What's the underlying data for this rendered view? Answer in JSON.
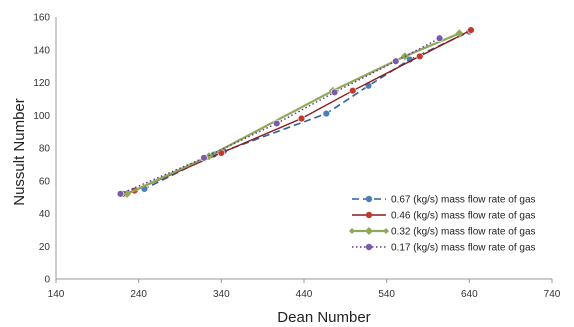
{
  "chart_data": {
    "type": "scatter",
    "xlabel": "Dean Number",
    "ylabel": "Nussult Number",
    "xlim": [
      140,
      740
    ],
    "ylim": [
      0,
      160
    ],
    "xticks": [
      140,
      240,
      340,
      440,
      540,
      640,
      740
    ],
    "yticks": [
      0,
      20,
      40,
      60,
      80,
      100,
      120,
      140,
      160
    ],
    "grid": false,
    "legend_position": "bottom-right",
    "series": [
      {
        "name": "0.67 (kg/s) mass flow rate of gas",
        "color": "#2E5F9E",
        "marker_color": "#4A7FB5",
        "line_style": "dashed",
        "x": [
          218,
          247,
          331,
          343,
          467,
          518,
          568,
          640
        ],
        "y": [
          52,
          55,
          76,
          78,
          101,
          118,
          134,
          151
        ]
      },
      {
        "name": "0.46 (kg/s) mass flow rate of gas",
        "color": "#8B1A1A",
        "marker_color": "#C0392B",
        "line_style": "solid",
        "x": [
          221,
          235,
          340,
          437,
          499,
          580,
          642
        ],
        "y": [
          52,
          54,
          77,
          98,
          115,
          136,
          152
        ]
      },
      {
        "name": "0.32 (kg/s) mass flow rate of gas",
        "color": "#8FA85A",
        "marker_color": "#8FA85A",
        "line_style": "solid-diamond",
        "x": [
          226,
          325,
          475,
          562,
          628
        ],
        "y": [
          52,
          75,
          115,
          136,
          150
        ]
      },
      {
        "name": "0.17 (kg/s) mass flow rate of gas",
        "color": "#5B3A8A",
        "marker_color": "#7A5BA8",
        "line_style": "dotted",
        "x": [
          218,
          319,
          407,
          477,
          551,
          604
        ],
        "y": [
          52,
          74,
          95,
          114,
          133,
          147
        ]
      }
    ]
  }
}
